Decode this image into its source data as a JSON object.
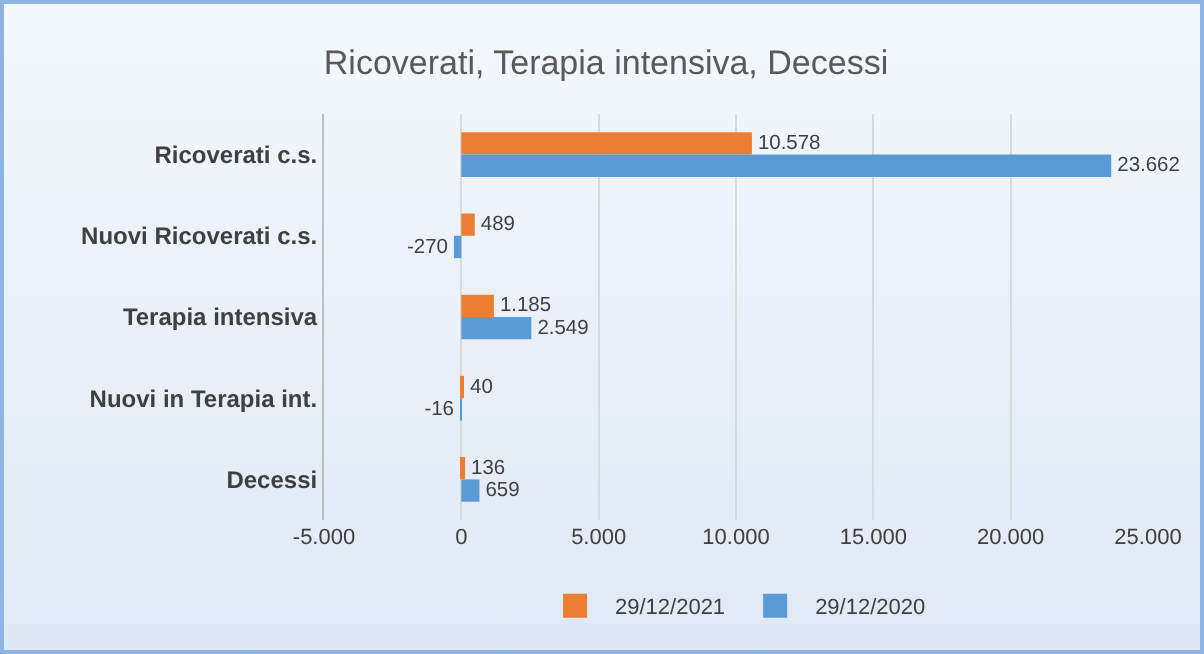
{
  "chart_data": {
    "type": "bar",
    "orientation": "horizontal",
    "title": "Ricoverati, Terapia intensiva, Decessi",
    "categories": [
      "Ricoverati c.s.",
      "Nuovi Ricoverati c.s.",
      "Terapia intensiva",
      "Nuovi in Terapia int.",
      "Decessi"
    ],
    "series": [
      {
        "name": "29/12/2021",
        "color": "#ed7d31",
        "values": [
          10578,
          489,
          1185,
          40,
          136
        ],
        "value_labels": [
          "10.578",
          "489",
          "1.185",
          "40",
          "136"
        ]
      },
      {
        "name": "29/12/2020",
        "color": "#5b9bd5",
        "values": [
          23662,
          -270,
          2549,
          -16,
          659
        ],
        "value_labels": [
          "23.662",
          "-270",
          "2.549",
          "-16",
          "659"
        ]
      }
    ],
    "xlim": [
      -5000,
      25000
    ],
    "xticks": [
      {
        "value": -5000,
        "label": "-5.000"
      },
      0,
      {
        "value": 5000,
        "label": "5.000"
      },
      {
        "value": 10000,
        "label": "10.000"
      },
      {
        "value": 15000,
        "label": "15.000"
      },
      {
        "value": 20000,
        "label": "20.000"
      },
      {
        "value": 25000,
        "label": "25.000"
      }
    ],
    "grid": "x",
    "legend": "bottom"
  }
}
